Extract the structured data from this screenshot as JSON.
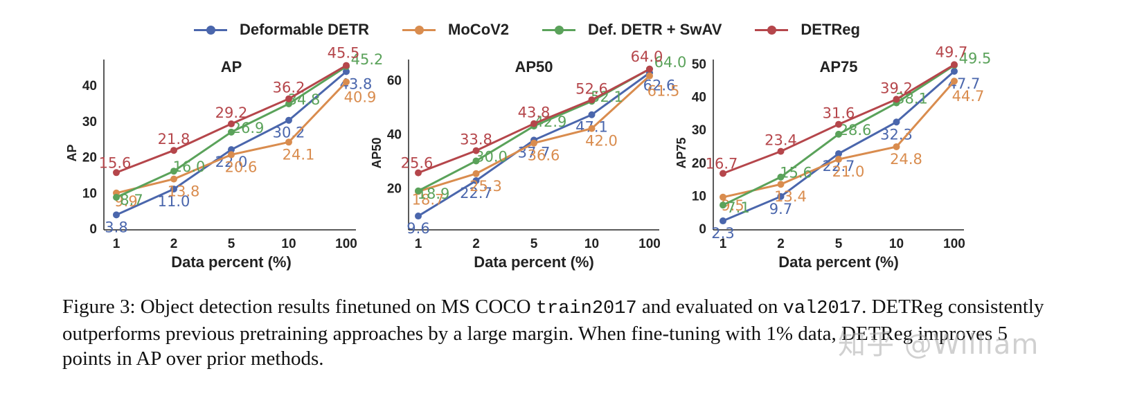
{
  "legend": [
    {
      "name": "Deformable DETR",
      "color": "#4a66ac"
    },
    {
      "name": "MoCoV2",
      "color": "#d98c4e"
    },
    {
      "name": "Def. DETR + SwAV",
      "color": "#5aa25a"
    },
    {
      "name": "DETReg",
      "color": "#b5464b"
    }
  ],
  "chart_data": [
    {
      "type": "line",
      "title": "AP",
      "xlabel": "Data percent (%)",
      "ylabel": "AP",
      "categories": [
        "1",
        "2",
        "5",
        "10",
        "100"
      ],
      "ylim": [
        0,
        46
      ],
      "yticks": [
        0,
        10,
        20,
        30,
        40
      ],
      "series": [
        {
          "name": "Deformable DETR",
          "values": [
            3.8,
            11.0,
            22.0,
            30.2,
            43.8
          ],
          "labels": [
            "3.8",
            "11.0",
            "22.0",
            "30.2",
            "43.8"
          ]
        },
        {
          "name": "MoCoV2",
          "values": [
            9.9,
            13.8,
            20.6,
            24.1,
            40.9
          ],
          "labels": [
            "9.9",
            "13.8",
            "20.6",
            "24.1",
            "40.9"
          ]
        },
        {
          "name": "Def. DETR + SwAV",
          "values": [
            8.7,
            16.0,
            26.9,
            34.8,
            45.2
          ],
          "labels": [
            "8.7",
            "16.0",
            "26.9",
            "34.8",
            "45.2"
          ]
        },
        {
          "name": "DETReg",
          "values": [
            15.6,
            21.8,
            29.2,
            36.2,
            45.5
          ],
          "labels": [
            "15.6",
            "21.8",
            "29.2",
            "36.2",
            "45.5"
          ]
        }
      ]
    },
    {
      "type": "line",
      "title": "AP50",
      "xlabel": "Data percent (%)",
      "ylabel": "AP50",
      "categories": [
        "1",
        "2",
        "5",
        "10",
        "100"
      ],
      "ylim": [
        5,
        66
      ],
      "yticks": [
        20,
        40,
        60
      ],
      "series": [
        {
          "name": "Deformable DETR",
          "values": [
            9.6,
            22.7,
            37.7,
            47.1,
            62.6
          ],
          "labels": [
            "9.6",
            "22.7",
            "37.7",
            "47.1",
            "62.6"
          ]
        },
        {
          "name": "MoCoV2",
          "values": [
            18.7,
            25.3,
            36.6,
            42.0,
            61.5
          ],
          "labels": [
            "18.7",
            "25.3",
            "36.6",
            "42.0",
            "61.5"
          ]
        },
        {
          "name": "Def. DETR + SwAV",
          "values": [
            18.9,
            30.0,
            42.9,
            52.1,
            64.0
          ],
          "labels": [
            "18.9",
            "30.0",
            "42.9",
            "52.1",
            "64.0"
          ]
        },
        {
          "name": "DETReg",
          "values": [
            25.6,
            33.8,
            43.8,
            52.6,
            64.0
          ],
          "labels": [
            "25.6",
            "33.8",
            "43.8",
            "52.6",
            "64.0"
          ]
        }
      ]
    },
    {
      "type": "line",
      "title": "AP75",
      "xlabel": "Data percent (%)",
      "ylabel": "AP75",
      "categories": [
        "1",
        "2",
        "5",
        "10",
        "100"
      ],
      "ylim": [
        0,
        50
      ],
      "yticks": [
        0,
        10,
        20,
        30,
        40,
        50
      ],
      "series": [
        {
          "name": "Deformable DETR",
          "values": [
            2.3,
            9.7,
            22.7,
            32.3,
            47.7
          ],
          "labels": [
            "2.3",
            "9.7",
            "22.7",
            "32.3",
            "47.7"
          ]
        },
        {
          "name": "MoCoV2",
          "values": [
            9.5,
            13.4,
            21.0,
            24.8,
            44.7
          ],
          "labels": [
            "9.5",
            "13.4",
            "21.0",
            "24.8",
            "44.7"
          ]
        },
        {
          "name": "Def. DETR + SwAV",
          "values": [
            7.1,
            15.6,
            28.6,
            38.1,
            49.5
          ],
          "labels": [
            "7.1",
            "15.6",
            "28.6",
            "38.1",
            "49.5"
          ]
        },
        {
          "name": "DETReg",
          "values": [
            16.7,
            23.4,
            31.6,
            39.2,
            49.7
          ],
          "labels": [
            "16.7",
            "23.4",
            "31.6",
            "39.2",
            "49.7"
          ]
        }
      ]
    }
  ],
  "caption": {
    "prefix": "Figure 3: Object detection results finetuned on MS COCO ",
    "train_set": "train2017",
    "middle": " and evaluated on ",
    "val_set": "val2017",
    "rest": ". DETReg consistently outperforms previous pretraining approaches by a large margin. When fine-tuning with 1% data, DETReg improves 5 points in AP over prior methods."
  },
  "watermark": "知乎 @William"
}
